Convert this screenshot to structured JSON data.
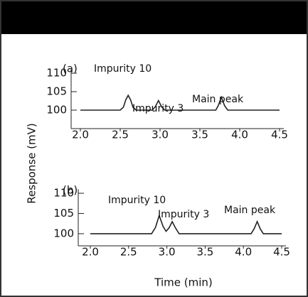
{
  "chart_data": [
    {
      "type": "line",
      "label": "(a)",
      "x": [
        2.0,
        2.5,
        2.54,
        2.57,
        2.6,
        2.63,
        2.66,
        2.7,
        2.9,
        2.94,
        2.98,
        3.02,
        3.06,
        3.7,
        3.73,
        3.77,
        3.81,
        3.85,
        4.5
      ],
      "series": [
        {
          "color": "#222222",
          "values": [
            100,
            100,
            100.8,
            102.8,
            104,
            102.8,
            100.8,
            100,
            100,
            100.9,
            102.6,
            100.9,
            100,
            100,
            101.2,
            103.5,
            101.2,
            100,
            100
          ]
        }
      ],
      "annotations": [
        "Impurity 10",
        "Impurity 3",
        "Main peak"
      ],
      "xlim": [
        2.0,
        4.5
      ],
      "xticks": [
        {
          "value": 2,
          "label": "2.0"
        },
        2.5,
        {
          "value": 3,
          "label": "3.0"
        },
        3.5,
        {
          "value": 4,
          "label": "4.0"
        },
        4.5
      ],
      "ylim": [
        95,
        111
      ],
      "yticks": [
        100,
        105,
        110
      ]
    },
    {
      "type": "line",
      "label": "(b)",
      "x": [
        2.0,
        2.8,
        2.85,
        2.9,
        2.95,
        2.99,
        3.03,
        3.07,
        3.11,
        3.16,
        4.1,
        4.14,
        4.18,
        4.22,
        4.26,
        4.5
      ],
      "series": [
        {
          "color": "#222222",
          "values": [
            100,
            100,
            101.5,
            104.5,
            101.8,
            100.6,
            101.5,
            103,
            101.5,
            100,
            100,
            101.2,
            103,
            101.2,
            100,
            100
          ]
        }
      ],
      "annotations": [
        "Impurity 10",
        "Impurity 3",
        "Main peak"
      ],
      "xlim": [
        2.0,
        4.5
      ],
      "xticks": [
        {
          "value": 2,
          "label": "2.0"
        },
        2.5,
        {
          "value": 3,
          "label": "3.0"
        },
        3.5,
        {
          "value": 4,
          "label": "4.0"
        },
        4.5
      ],
      "ylim": [
        97,
        111
      ],
      "yticks": [
        100,
        105,
        110
      ]
    }
  ],
  "axis_labels": {
    "y": "Response (mV)",
    "x": "Time (min)"
  }
}
